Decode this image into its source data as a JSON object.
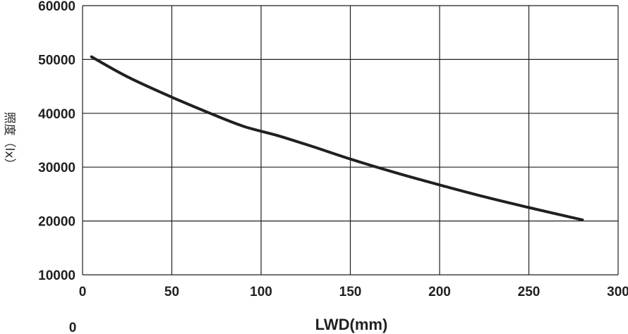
{
  "chart_data": {
    "type": "line",
    "xlabel": "LWD(mm)",
    "ylabel": "照度（lx）",
    "x_ticks": [
      "0",
      "50",
      "100",
      "150",
      "200",
      "250",
      "300"
    ],
    "y_ticks": [
      "10000",
      "20000",
      "30000",
      "40000",
      "50000",
      "60000"
    ],
    "extra_label": "0",
    "xlim": [
      0,
      300
    ],
    "ylim": [
      10000,
      60000
    ],
    "grid": true,
    "series": [
      {
        "color": "#231f20",
        "x": [
          5,
          25,
          50,
          70,
          90,
          110,
          130,
          150,
          175,
          200,
          225,
          250,
          280
        ],
        "y": [
          50500,
          46800,
          43000,
          40200,
          37600,
          35800,
          33700,
          31500,
          29000,
          26700,
          24500,
          22500,
          20200
        ]
      }
    ]
  }
}
